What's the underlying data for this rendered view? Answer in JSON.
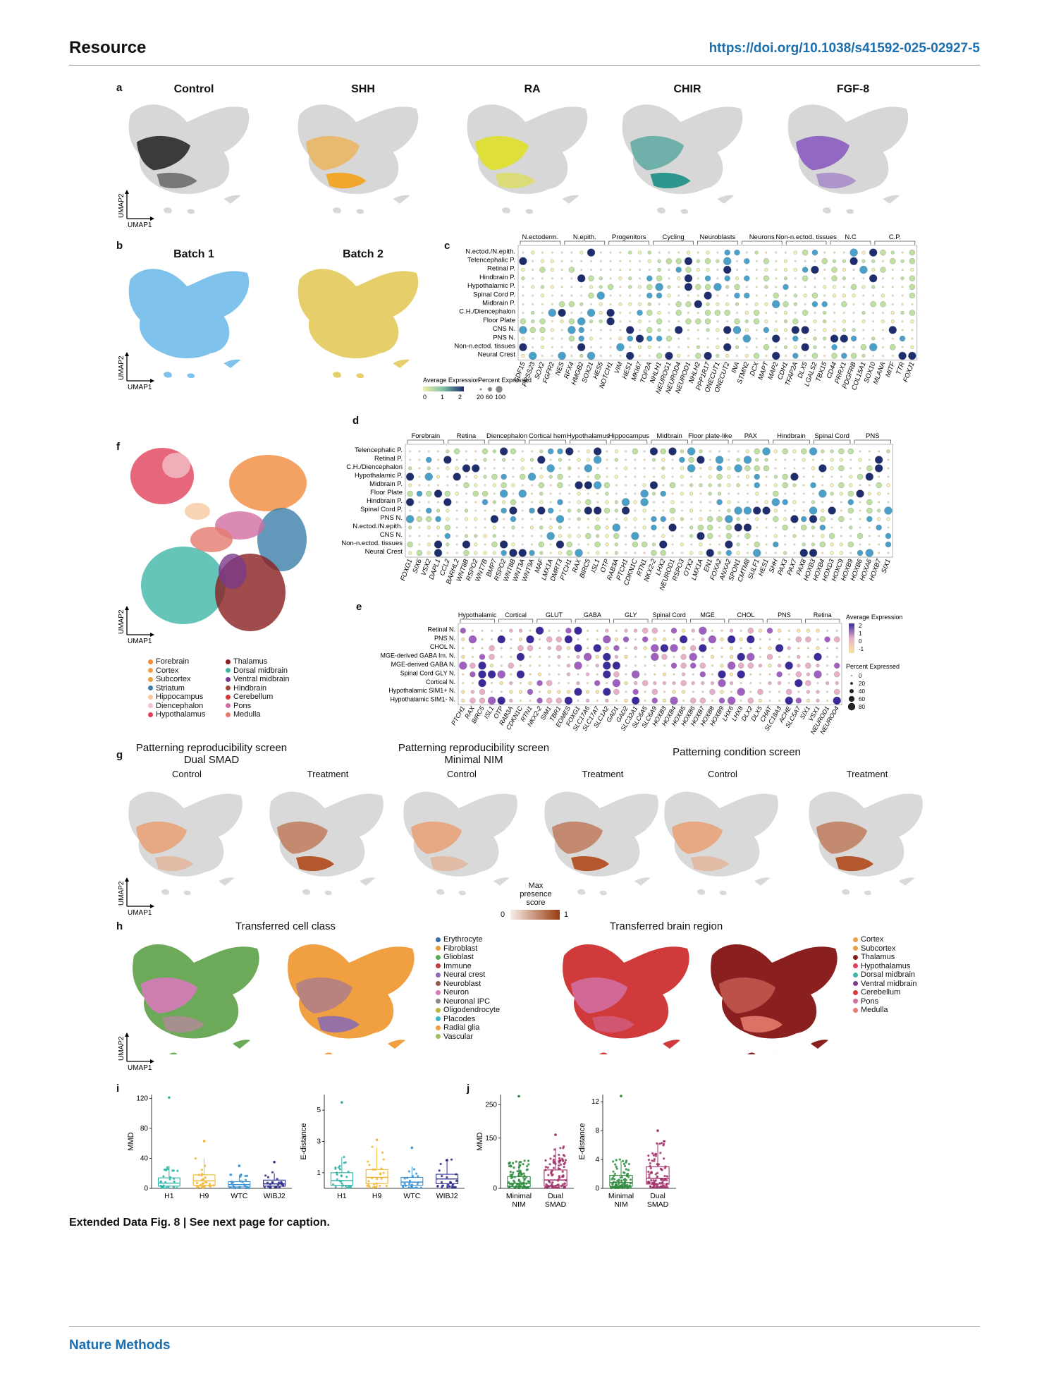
{
  "header": {
    "left": "Resource",
    "right": "https://doi.org/10.1038/s41592-025-02927-5"
  },
  "footer": "Nature Methods",
  "caption": "Extended Data Fig. 8 | See next page for caption.",
  "panels": {
    "a": {
      "letter": "a",
      "titles": [
        "Control",
        "SHH",
        "RA",
        "CHIR",
        "FGF-8"
      ],
      "colors": [
        "#2a2a2a",
        "#f4a21a",
        "#dfe02a",
        "#1c8f85",
        "#8a5cc0"
      ]
    },
    "b": {
      "letter": "b",
      "titles": [
        "Batch 1",
        "Batch 2"
      ],
      "colors": [
        "#7fc3ec",
        "#e6cf6b"
      ]
    },
    "c": {
      "letter": "c",
      "groups": [
        "N.ectoderm.",
        "N.epith.",
        "Progenitors",
        "Cycling",
        "Neuroblasts",
        "Neurons",
        "Non-n.ectod. tissues",
        "N.C",
        "C.P."
      ],
      "rows": [
        "N.ectod./N.epith.",
        "Telencephalic P.",
        "Retinal P.",
        "Hindbrain P.",
        "Hypothalamic P.",
        "Spinal Cord P.",
        "Midbrain P.",
        "C.H./Diencephalon",
        "Floor Plate",
        "CNS N.",
        "PNS N.",
        "Non-n.ectod. tissues",
        "Neural Crest"
      ],
      "genes": [
        "GDF15",
        "PRSS23",
        "SOX2",
        "FGFR2",
        "NES",
        "RFX4",
        "HMGB2",
        "SOX21",
        "HES5",
        "NOTCH1",
        "VIM",
        "HES1",
        "MKI67",
        "TOP2A",
        "NHLH1",
        "NEUROG1",
        "NEUROD4",
        "NEUROD1",
        "NHLH2",
        "PPP1R17",
        "ONECUT1",
        "ONECUT2",
        "INA",
        "STMN2",
        "DCX",
        "MAPT",
        "MAP2",
        "CDH1",
        "TFAP2A",
        "DLX5",
        "LGALS2",
        "TBX15",
        "CD44",
        "PRRX1",
        "PDGFRB",
        "COL15A1",
        "SOX10",
        "MLANA",
        "MITF",
        "TTR",
        "FOXJ1"
      ],
      "legend": {
        "avg": "Average Expression",
        "avg_ticks": [
          "0",
          "1",
          "2"
        ],
        "pct": "Percent Expressed",
        "pct_ticks": [
          "20",
          "60",
          "100"
        ]
      }
    },
    "d": {
      "letter": "d",
      "groups": [
        "Forebrain",
        "Retina",
        "Diencephalon",
        "Cortical hem",
        "Hypothalamus",
        "Hippocampus",
        "Midbrain",
        "Floor plate-like",
        "PAX",
        "Hindbrain",
        "Spinal Cord",
        "PNS"
      ],
      "rows": [
        "Telencephalic P.",
        "Retinal P.",
        "C.H./Diencephalon",
        "Hypothalamic P.",
        "Midbrain P.",
        "Floor Plate",
        "Hindbrain P.",
        "Spinal Cord P.",
        "PNS N.",
        "N.ectod./N.epith.",
        "CNS N.",
        "Non-n.ectod. tissues",
        "Neural Crest"
      ],
      "genes": [
        "FOXG1",
        "SIX6",
        "VSX2",
        "DAPL1",
        "CCL2",
        "BARHL2",
        "WNT8B",
        "RSPO2",
        "WNT7B",
        "BMP7",
        "RSPO2",
        "WNT8B",
        "WNT3A",
        "WNT9A",
        "MAF",
        "LMX1A",
        "DMRT3",
        "PTCH1",
        "RAX",
        "BIRC5",
        "ISL1",
        "OTP",
        "RAB3A",
        "PTCH1",
        "CDKN1C",
        "RTN1",
        "NKX2-2",
        "LHX2",
        "NEUROD1",
        "RSPO3",
        "OTX2",
        "LMX1A",
        "EN1",
        "FOXA2",
        "ANXA2",
        "SPON1",
        "CMTM8",
        "SULF1",
        "HES1",
        "SHH",
        "PAX3",
        "PAX7",
        "PAX8",
        "HOXB3",
        "HOXB4",
        "HOXD3",
        "HOXC9",
        "HOXB9",
        "HOXB6",
        "HOXA6",
        "HOXB7",
        "SIX1"
      ]
    },
    "e": {
      "letter": "e",
      "groups": [
        "Hypothalamic",
        "Cortical",
        "GLUT",
        "GABA",
        "GLY",
        "Spinal Cord",
        "MGE",
        "CHOL",
        "PNS",
        "Retina"
      ],
      "rows": [
        "Retinal N.",
        "PNS N.",
        "CHOL N.",
        "MGE-derived GABA Im. N.",
        "MGE-derived GABA N.",
        "Spinal Cord GLY N.",
        "Cortical N.",
        "Hypothalamic SIM1+ N.",
        "Hypothalamic SIM1- N."
      ],
      "genes": [
        "PTCH1",
        "RAX",
        "BIRC5",
        "ISL1",
        "OTP",
        "RAB3A",
        "CDKN1C",
        "RTN1",
        "NKX2-2",
        "SIM1",
        "TBR1",
        "EOMES",
        "FOXG1",
        "SLC17A6",
        "SLC17A7",
        "SLC1A2",
        "GAD1",
        "GAD2",
        "SLC32A1",
        "SLC6A5",
        "SLC6A9",
        "HOXB3",
        "HOXB4",
        "HOXB5",
        "HOXB6",
        "HOXB7",
        "HOXB8",
        "HOXB9",
        "LHX6",
        "LHX8",
        "DLX2",
        "DLX5",
        "CHAT",
        "SLC18A3",
        "ACHE",
        "SLC5A7",
        "SIX1",
        "VSX1",
        "NEUROD1",
        "NEUROD4"
      ],
      "legend": {
        "avg": "Average Expression",
        "avg_ticks": [
          "2",
          "1",
          "0",
          "-1"
        ],
        "pct": "Percent Expressed",
        "pct_ticks": [
          "0",
          "20",
          "40",
          "60",
          "80"
        ]
      }
    },
    "f": {
      "letter": "f",
      "legend_col1": [
        {
          "name": "Forebrain",
          "color": "#f08b3c"
        },
        {
          "name": "Cortex",
          "color": "#f2a050"
        },
        {
          "name": "Subcortex",
          "color": "#e8a048"
        },
        {
          "name": "Striatum",
          "color": "#3b7ea8"
        },
        {
          "name": "Hippocampus",
          "color": "#f6c9a0"
        },
        {
          "name": "Diencephalon",
          "color": "#f2c0c8"
        },
        {
          "name": "Hypothalamus",
          "color": "#e0405a"
        }
      ],
      "legend_col2": [
        {
          "name": "Thalamus",
          "color": "#8a1f1f"
        },
        {
          "name": "Dorsal midbrain",
          "color": "#3fb6a6"
        },
        {
          "name": "Ventral midbrain",
          "color": "#7a3a8a"
        },
        {
          "name": "Hindbrain",
          "color": "#a04a3a"
        },
        {
          "name": "Cerebellum",
          "color": "#d03a3a"
        },
        {
          "name": "Pons",
          "color": "#d26ea0"
        },
        {
          "name": "Medulla",
          "color": "#e57a6e"
        }
      ]
    },
    "g": {
      "letter": "g",
      "titles": [
        "Patterning reproducibility screen\nDual SMAD",
        "Patterning reproducibility screen\nMinimal NIM",
        "Patterning condition screen"
      ],
      "sub": [
        "Control",
        "Treatment",
        "Control",
        "Treatment",
        "Control",
        "Treatment"
      ],
      "legend": {
        "title": "Max\npresence\nscore",
        "min": "0",
        "max": "1"
      }
    },
    "h": {
      "letter": "h",
      "titles": [
        "Transferred cell class",
        "Transferred brain region"
      ],
      "class_legend": [
        {
          "name": "Erythrocyte",
          "color": "#3b6ea5"
        },
        {
          "name": "Fibroblast",
          "color": "#e89a3a"
        },
        {
          "name": "Glioblast",
          "color": "#5aaa5a"
        },
        {
          "name": "Immune",
          "color": "#c23b3b"
        },
        {
          "name": "Neural crest",
          "color": "#8b6bb0"
        },
        {
          "name": "Neuroblast",
          "color": "#8c5a4a"
        },
        {
          "name": "Neuron",
          "color": "#d77ab8"
        },
        {
          "name": "Neuronal IPC",
          "color": "#8a8a8a"
        },
        {
          "name": "Oligodendrocyte",
          "color": "#b8b83a"
        },
        {
          "name": "Placodes",
          "color": "#3ab8c8"
        },
        {
          "name": "Radial glia",
          "color": "#f0a040"
        },
        {
          "name": "Vascular",
          "color": "#a0c060"
        }
      ],
      "region_legend": [
        {
          "name": "Cortex",
          "color": "#f2a050"
        },
        {
          "name": "Subcortex",
          "color": "#e8a048"
        },
        {
          "name": "Thalamus",
          "color": "#8a1f1f"
        },
        {
          "name": "Hypothalamus",
          "color": "#e0405a"
        },
        {
          "name": "Dorsal midbrain",
          "color": "#3fb6a6"
        },
        {
          "name": "Ventral midbrain",
          "color": "#7a3a8a"
        },
        {
          "name": "Cerebellum",
          "color": "#d03a3a"
        },
        {
          "name": "Pons",
          "color": "#d26ea0"
        },
        {
          "name": "Medulla",
          "color": "#e57a6e"
        }
      ]
    },
    "i": {
      "letter": "i"
    },
    "j": {
      "letter": "j"
    },
    "umap": {
      "x": "UMAP1",
      "y": "UMAP2"
    }
  },
  "chart_data": [
    {
      "type": "box",
      "panel": "i",
      "ylabel": "MMD",
      "categories": [
        "H1",
        "H9",
        "WTC",
        "WIBJ2"
      ],
      "ylim": [
        0,
        125
      ],
      "yticks": [
        "0",
        "40",
        "80",
        "120"
      ],
      "median": [
        7,
        10,
        5,
        6
      ],
      "q1": [
        3,
        4,
        2,
        3
      ],
      "q3": [
        14,
        18,
        9,
        11
      ],
      "whisker_high": [
        30,
        40,
        18,
        20
      ],
      "outlier_max": [
        121,
        63,
        30,
        35
      ],
      "colors": [
        "#2fb3a6",
        "#f2b632",
        "#3a93d6",
        "#2d2d8a"
      ]
    },
    {
      "type": "box",
      "panel": "i",
      "ylabel": "E-distance",
      "categories": [
        "H1",
        "H9",
        "WTC",
        "WIBJ2"
      ],
      "ylim": [
        0,
        6
      ],
      "yticks": [
        "1",
        "3",
        "5"
      ],
      "median": [
        0.5,
        0.7,
        0.4,
        0.6
      ],
      "q1": [
        0.2,
        0.3,
        0.2,
        0.3
      ],
      "q3": [
        1.0,
        1.2,
        0.7,
        0.9
      ],
      "whisker_high": [
        2.0,
        2.6,
        1.4,
        1.7
      ],
      "outlier_max": [
        5.5,
        3.1,
        2.6,
        1.8
      ],
      "colors": [
        "#2fb3a6",
        "#f2b632",
        "#3a93d6",
        "#2d2d8a"
      ]
    },
    {
      "type": "box",
      "panel": "j",
      "ylabel": "MMD",
      "categories": [
        "Minimal NIM",
        "Dual SMAD"
      ],
      "ylim": [
        0,
        280
      ],
      "yticks": [
        "0",
        "150",
        "250"
      ],
      "median": [
        15,
        25
      ],
      "q1": [
        5,
        8
      ],
      "q3": [
        35,
        55
      ],
      "whisker_high": [
        80,
        120
      ],
      "outlier_max": [
        275,
        160
      ],
      "colors": [
        "#2e8b3e",
        "#a0306a"
      ]
    },
    {
      "type": "box",
      "panel": "j",
      "ylabel": "E-distance",
      "categories": [
        "Minimal NIM",
        "Dual SMAD"
      ],
      "ylim": [
        0,
        13
      ],
      "yticks": [
        "0",
        "4",
        "8",
        "12"
      ],
      "median": [
        0.8,
        1.4
      ],
      "q1": [
        0.3,
        0.6
      ],
      "q3": [
        1.8,
        3.0
      ],
      "whisker_high": [
        3.8,
        6.2
      ],
      "outlier_max": [
        12.8,
        8.0
      ],
      "colors": [
        "#2e8b3e",
        "#a0306a"
      ]
    }
  ]
}
